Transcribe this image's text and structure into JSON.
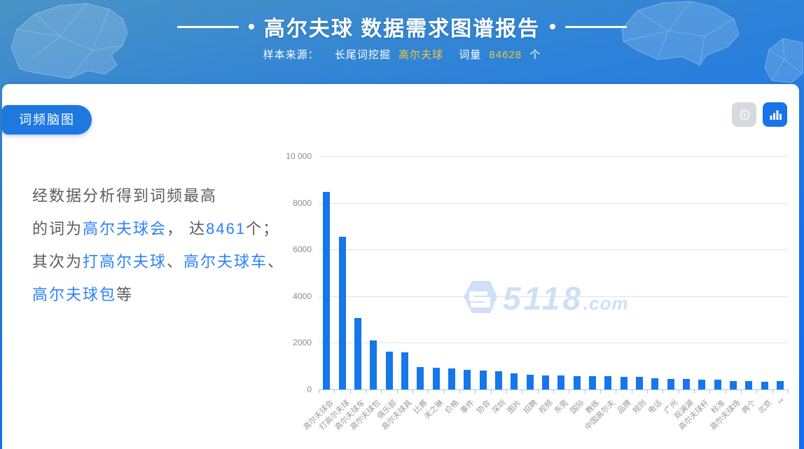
{
  "header": {
    "title": "高尔夫球 数据需求图谱报告",
    "subtitle": {
      "prefix": "样本来源：",
      "method": "长尾词挖掘",
      "keyword": "高尔夫球",
      "count_label": "词量",
      "count": "84628",
      "count_unit": "个"
    }
  },
  "panel": {
    "tab_label": "词频脑图",
    "description": [
      [
        {
          "t": "经数据分析得到词频最高",
          "hl": 0
        }
      ],
      [
        {
          "t": "的词为",
          "hl": 0
        },
        {
          "t": "高尔夫球会",
          "hl": 1
        },
        {
          "t": "， 达",
          "hl": 0
        },
        {
          "t": "8461",
          "hl": 1
        },
        {
          "t": "个；",
          "hl": 0
        }
      ],
      [
        {
          "t": "其次为",
          "hl": 0
        },
        {
          "t": "打高尔夫球",
          "hl": 1
        },
        {
          "t": "、",
          "hl": 0
        },
        {
          "t": "高尔夫球车",
          "hl": 1
        },
        {
          "t": "、",
          "hl": 0
        }
      ],
      [
        {
          "t": "高尔夫球包",
          "hl": 1
        },
        {
          "t": "等",
          "hl": 0
        }
      ]
    ]
  },
  "toolbar": {
    "buttons": [
      {
        "name": "brain-view",
        "active": false
      },
      {
        "name": "bar-chart-view",
        "active": true
      }
    ]
  },
  "watermark": {
    "brand": "5118",
    "suffix": ".com"
  },
  "colors": {
    "bar_blue": "#1577ea",
    "tab_blue": "#1e78e0",
    "highlight_blue": "#2e82f8",
    "accent_yellow": "#f2c43d",
    "axis_blue": "#a9c7e9",
    "grid_gray": "#e3e3e3"
  },
  "chart_data": {
    "type": "bar",
    "title": "",
    "xlabel": "",
    "ylabel": "",
    "ylim": [
      0,
      10000
    ],
    "grid": true,
    "legend_position": "none",
    "yticks": [
      {
        "label": "10 000",
        "value": 10000
      },
      {
        "label": "8000",
        "value": 8000
      },
      {
        "label": "6000",
        "value": 6000
      },
      {
        "label": "4000",
        "value": 4000
      },
      {
        "label": "2000",
        "value": 2000
      },
      {
        "label": "0",
        "value": 0
      }
    ],
    "categories": [
      "高尔夫球会",
      "打高尔夫球",
      "高尔夫球车",
      "高尔夫球包",
      "俱乐部",
      "高尔夫球具",
      "比赛",
      "关之琳",
      "价格",
      "事件",
      "协会",
      "深圳",
      "图片",
      "招聘",
      "视频",
      "东莞",
      "国际",
      "教练",
      "中国高尔夫",
      "品牌",
      "规则",
      "电话",
      "广州",
      "观澜湖",
      "高尔夫球杆",
      "标准",
      "高尔夫球场",
      "两个",
      "北京",
      "**"
    ],
    "values": [
      8461,
      6550,
      3060,
      2090,
      1620,
      1600,
      970,
      930,
      905,
      855,
      815,
      790,
      695,
      645,
      598,
      588,
      580,
      572,
      562,
      555,
      548,
      478,
      458,
      450,
      430,
      420,
      355,
      350,
      345,
      360
    ]
  }
}
